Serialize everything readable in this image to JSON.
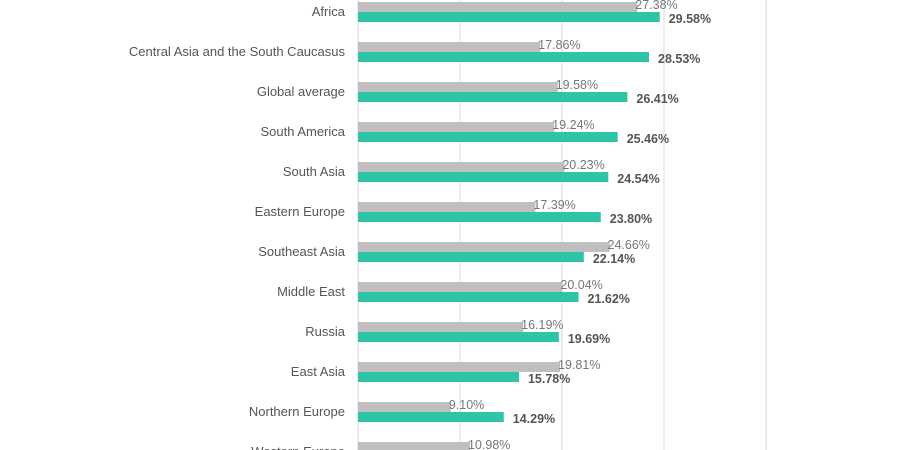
{
  "chart_data": {
    "type": "bar",
    "orientation": "horizontal",
    "title": "",
    "xlabel": "",
    "ylabel": "",
    "xlim": [
      0,
      40
    ],
    "grid": true,
    "categories": [
      "Africa",
      "Central Asia and the South Caucasus",
      "Global average",
      "South America",
      "South Asia",
      "Eastern Europe",
      "Southeast Asia",
      "Middle East",
      "Russia",
      "East Asia",
      "Northern Europe",
      "Western Europe"
    ],
    "series": [
      {
        "color": "#bfbfbf",
        "values": [
          27.38,
          17.86,
          19.58,
          19.24,
          20.23,
          17.39,
          24.66,
          20.04,
          16.19,
          19.81,
          9.1,
          10.98
        ],
        "labels": [
          "27.38%",
          "17.86%",
          "19.58%",
          "19.24%",
          "20.23%",
          "17.39%",
          "24.66%",
          "20.04%",
          "16.19%",
          "19.81%",
          "9.10%",
          "10.98%"
        ]
      },
      {
        "color": "#2ec4a6",
        "values": [
          29.58,
          28.53,
          26.41,
          25.46,
          24.54,
          23.8,
          22.14,
          21.62,
          19.69,
          15.78,
          14.29,
          null
        ],
        "labels": [
          "29.58%",
          "28.53%",
          "26.41%",
          "25.46%",
          "24.54%",
          "23.80%",
          "22.14%",
          "21.62%",
          "19.69%",
          "15.78%",
          "14.29%",
          ""
        ]
      }
    ]
  }
}
